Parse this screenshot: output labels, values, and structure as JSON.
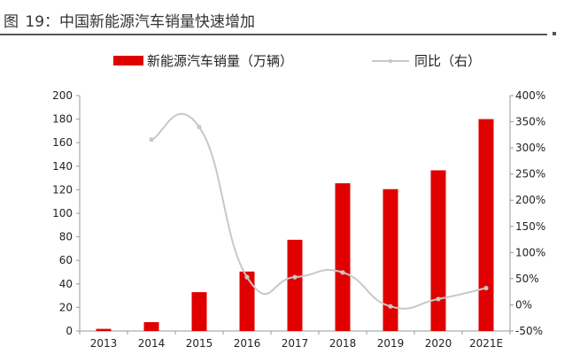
{
  "figure": {
    "label": "图",
    "number": "19：",
    "caption": "中国新能源汽车销量快速增加"
  },
  "chart_data": {
    "type": "bar",
    "categories": [
      "2013",
      "2014",
      "2015",
      "2016",
      "2017",
      "2018",
      "2019",
      "2020",
      "2021E"
    ],
    "series": [
      {
        "name": "新能源汽车销量（万辆）",
        "type": "bar",
        "axis": "left",
        "color": "#e00000",
        "values": [
          1.8,
          7.5,
          33,
          50.5,
          77.5,
          125.5,
          120.5,
          136.5,
          180
        ]
      },
      {
        "name": "同比（右）",
        "type": "line",
        "axis": "right",
        "color": "#c8c8c8",
        "values": [
          null,
          316,
          340,
          53,
          53,
          62,
          -3,
          11,
          32
        ]
      }
    ],
    "y_left": {
      "lim": [
        0,
        200
      ],
      "ticks": [
        "0",
        "20",
        "40",
        "60",
        "80",
        "100",
        "120",
        "140",
        "160",
        "180",
        "200"
      ]
    },
    "y_right": {
      "lim": [
        -50,
        400
      ],
      "ticks": [
        "-50%",
        "0%",
        "50%",
        "100%",
        "150%",
        "200%",
        "250%",
        "300%",
        "350%",
        "400%"
      ]
    },
    "legend_position": "top",
    "grid": false
  }
}
